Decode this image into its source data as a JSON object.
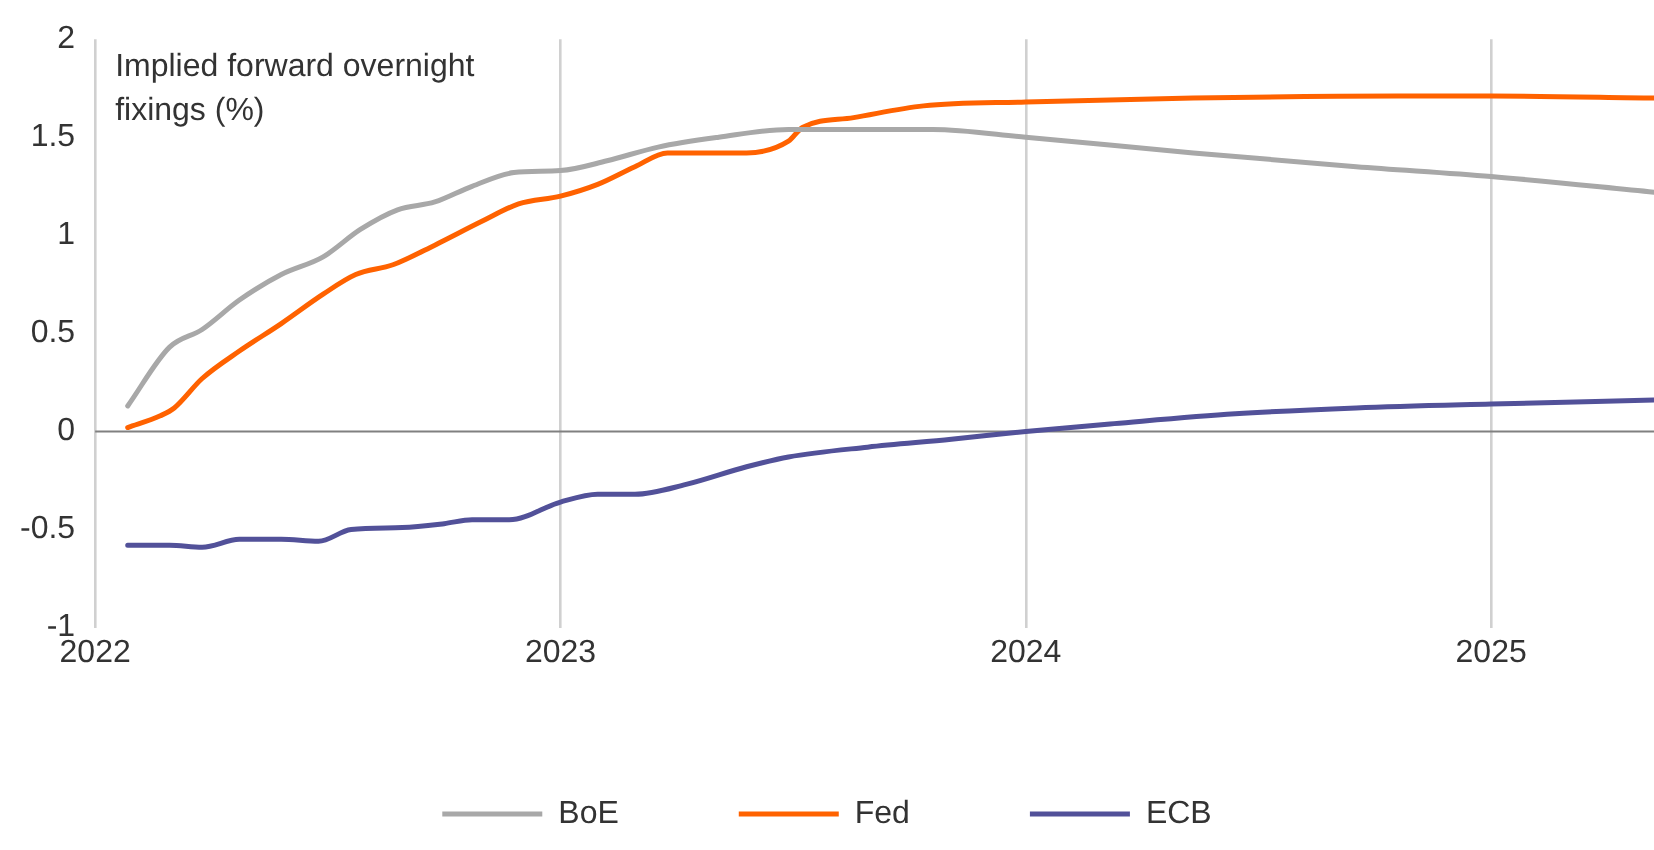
{
  "chart_data": {
    "type": "line",
    "ylabel": "Implied forward overnight fixings (%)",
    "xlim": [
      2022,
      2025.35
    ],
    "xticks": [
      2022,
      2023,
      2024,
      2025
    ],
    "ylim": [
      -1,
      2
    ],
    "yticks": [
      -1,
      -0.5,
      0,
      0.5,
      1,
      1.5,
      2
    ],
    "grid": "x",
    "legend": "bottom",
    "marker": "none",
    "line_style": "solid",
    "ref_lines": [
      {
        "axis": "y",
        "value": 0,
        "color": "#808080"
      }
    ],
    "series": [
      {
        "name": "BoE",
        "color": "#a8a8a8",
        "x": [
          2022.07,
          2022.16,
          2022.23,
          2022.31,
          2022.4,
          2022.49,
          2022.57,
          2022.65,
          2022.73,
          2022.81,
          2022.9,
          2023.0,
          2023.1,
          2023.21,
          2023.34,
          2023.49,
          2023.66,
          2023.8,
          2024.0,
          2024.36,
          2024.71,
          2025.0,
          2025.35
        ],
        "values": [
          0.13,
          0.43,
          0.52,
          0.67,
          0.8,
          0.89,
          1.03,
          1.13,
          1.17,
          1.25,
          1.32,
          1.33,
          1.38,
          1.45,
          1.5,
          1.54,
          1.54,
          1.54,
          1.5,
          1.42,
          1.35,
          1.3,
          1.22
        ]
      },
      {
        "name": "Fed",
        "color": "#ff6200",
        "x": [
          2022.07,
          2022.14,
          2022.17,
          2022.23,
          2022.31,
          2022.4,
          2022.49,
          2022.56,
          2022.64,
          2022.73,
          2022.83,
          2022.91,
          2023.0,
          2023.08,
          2023.16,
          2023.23,
          2023.32,
          2023.4,
          2023.49,
          2023.52,
          2023.63,
          2023.78,
          2024.0,
          2024.36,
          2024.8,
          2025.0,
          2025.35
        ],
        "values": [
          0.02,
          0.08,
          0.12,
          0.27,
          0.41,
          0.55,
          0.7,
          0.8,
          0.85,
          0.95,
          1.07,
          1.16,
          1.2,
          1.26,
          1.35,
          1.42,
          1.42,
          1.42,
          1.48,
          1.55,
          1.6,
          1.66,
          1.68,
          1.7,
          1.71,
          1.71,
          1.7
        ]
      },
      {
        "name": "ECB",
        "color": "#525199",
        "x": [
          2022.07,
          2022.16,
          2022.23,
          2022.31,
          2022.4,
          2022.48,
          2022.55,
          2022.66,
          2022.75,
          2022.81,
          2022.89,
          2023.0,
          2023.08,
          2023.16,
          2023.27,
          2023.4,
          2023.49,
          2023.66,
          2023.84,
          2024.0,
          2024.19,
          2024.45,
          2024.71,
          2025.0,
          2025.35
        ],
        "values": [
          -0.58,
          -0.58,
          -0.59,
          -0.55,
          -0.55,
          -0.56,
          -0.5,
          -0.49,
          -0.47,
          -0.45,
          -0.45,
          -0.36,
          -0.32,
          -0.32,
          -0.27,
          -0.18,
          -0.13,
          -0.08,
          -0.04,
          0,
          0.04,
          0.09,
          0.12,
          0.14,
          0.16
        ]
      }
    ]
  }
}
